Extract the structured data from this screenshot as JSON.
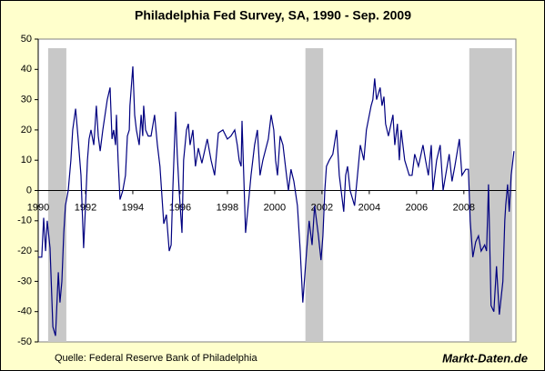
{
  "chart_data": {
    "type": "line",
    "title": "Philadelphia Fed Survey, SA, 1990 - Sep. 2009",
    "source": "Quelle: Federal Reserve Bank of Philadelphia",
    "brand": "Markt-Daten.de",
    "xlim": [
      1990,
      2010.2
    ],
    "xticks": [
      1990,
      1992,
      1994,
      1996,
      1998,
      2000,
      2002,
      2004,
      2006,
      2008
    ],
    "ylim": [
      -50,
      50
    ],
    "yticks": [
      -50,
      -40,
      -30,
      -20,
      -10,
      0,
      10,
      20,
      30,
      40,
      50
    ],
    "shaded_periods": [
      {
        "x": [
          1990.42,
          1991.19
        ],
        "top": 47
      },
      {
        "x": [
          2001.3,
          2002.05
        ],
        "top": 47
      },
      {
        "x": [
          2008.23,
          2010.04
        ],
        "top": 47
      }
    ],
    "shade_color": "#c8c8c8",
    "series": [
      {
        "color": "#000080",
        "x": [
          1990.0,
          1990.15,
          1990.23,
          1990.31,
          1990.38,
          1990.5,
          1990.62,
          1990.73,
          1990.85,
          1990.92,
          1991.0,
          1991.08,
          1991.15,
          1991.27,
          1991.38,
          1991.46,
          1991.58,
          1991.69,
          1991.81,
          1991.92,
          1992.0,
          1992.08,
          1992.15,
          1992.23,
          1992.35,
          1992.46,
          1992.54,
          1992.62,
          1992.73,
          1992.92,
          1993.04,
          1993.12,
          1993.19,
          1993.27,
          1993.31,
          1993.38,
          1993.46,
          1993.58,
          1993.69,
          1993.77,
          1993.85,
          1993.88,
          1994.0,
          1994.08,
          1994.15,
          1994.27,
          1994.35,
          1994.42,
          1994.46,
          1994.54,
          1994.65,
          1994.77,
          1994.92,
          1995.04,
          1995.15,
          1995.31,
          1995.42,
          1995.54,
          1995.62,
          1995.69,
          1995.81,
          1995.88,
          1995.96,
          1996.08,
          1996.15,
          1996.27,
          1996.35,
          1996.42,
          1996.54,
          1996.65,
          1996.77,
          1996.92,
          1997.15,
          1997.31,
          1997.46,
          1997.62,
          1997.81,
          1998.0,
          1998.15,
          1998.31,
          1998.42,
          1998.5,
          1998.58,
          1998.62,
          1998.69,
          1998.77,
          1998.88,
          1999.0,
          1999.15,
          1999.27,
          1999.38,
          1999.5,
          1999.73,
          1999.85,
          1999.96,
          2000.04,
          2000.12,
          2000.23,
          2000.35,
          2000.5,
          2000.58,
          2000.69,
          2000.81,
          2000.96,
          2001.08,
          2001.19,
          2001.35,
          2001.46,
          2001.58,
          2001.69,
          2001.85,
          2001.96,
          2002.04,
          2002.12,
          2002.19,
          2002.31,
          2002.46,
          2002.62,
          2002.73,
          2002.92,
          2003.0,
          2003.08,
          2003.19,
          2003.38,
          2003.5,
          2003.62,
          2003.77,
          2003.88,
          2004.08,
          2004.15,
          2004.23,
          2004.31,
          2004.46,
          2004.54,
          2004.62,
          2004.69,
          2004.81,
          2005.0,
          2005.08,
          2005.19,
          2005.27,
          2005.35,
          2005.5,
          2005.69,
          2005.81,
          2005.92,
          2006.08,
          2006.27,
          2006.38,
          2006.5,
          2006.62,
          2006.69,
          2006.85,
          2007.0,
          2007.12,
          2007.23,
          2007.38,
          2007.5,
          2007.62,
          2007.81,
          2007.92,
          2008.08,
          2008.19,
          2008.27,
          2008.38,
          2008.5,
          2008.62,
          2008.73,
          2008.88,
          2008.96,
          2009.04,
          2009.15,
          2009.27,
          2009.38,
          2009.5,
          2009.65,
          2009.73,
          2009.77,
          2009.85,
          2009.92,
          2010.0,
          2010.12
        ],
        "values": [
          -22,
          -22,
          -9,
          -20,
          -10,
          -19,
          -45,
          -48,
          -27,
          -37,
          -30,
          -14,
          -5,
          0,
          10,
          20,
          27,
          17,
          5,
          -19,
          -5,
          10,
          17,
          20,
          15,
          28,
          18,
          13,
          20,
          30,
          34,
          17,
          20,
          15,
          25,
          10,
          -3,
          0,
          5,
          18,
          20,
          28,
          41,
          25,
          20,
          15,
          25,
          18,
          28,
          20,
          18,
          18,
          25,
          15,
          8,
          -11,
          -8,
          -20,
          -18,
          0,
          26,
          12,
          0,
          -14,
          10,
          20,
          22,
          15,
          20,
          8,
          14,
          9,
          17,
          10,
          5,
          19,
          20,
          17,
          18,
          20,
          15,
          10,
          8,
          23,
          5,
          -14,
          -5,
          5,
          15,
          20,
          5,
          10,
          17,
          25,
          20,
          10,
          5,
          18,
          15,
          5,
          0,
          7,
          3,
          -5,
          -20,
          -37,
          -20,
          -10,
          -18,
          -5,
          -15,
          -23,
          -15,
          0,
          8,
          10,
          12,
          20,
          5,
          -7,
          5,
          8,
          0,
          -5,
          5,
          15,
          10,
          20,
          28,
          30,
          37,
          30,
          34,
          28,
          31,
          22,
          18,
          25,
          15,
          22,
          10,
          20,
          10,
          5,
          5,
          12,
          8,
          15,
          10,
          5,
          15,
          0,
          10,
          15,
          0,
          5,
          12,
          3,
          8,
          17,
          5,
          7,
          7,
          -10,
          -22,
          -17,
          -15,
          -20,
          -18,
          -20,
          2,
          -38,
          -40,
          -25,
          -41,
          -30,
          -10,
          -5,
          2,
          -7,
          5,
          13
        ]
      }
    ]
  }
}
